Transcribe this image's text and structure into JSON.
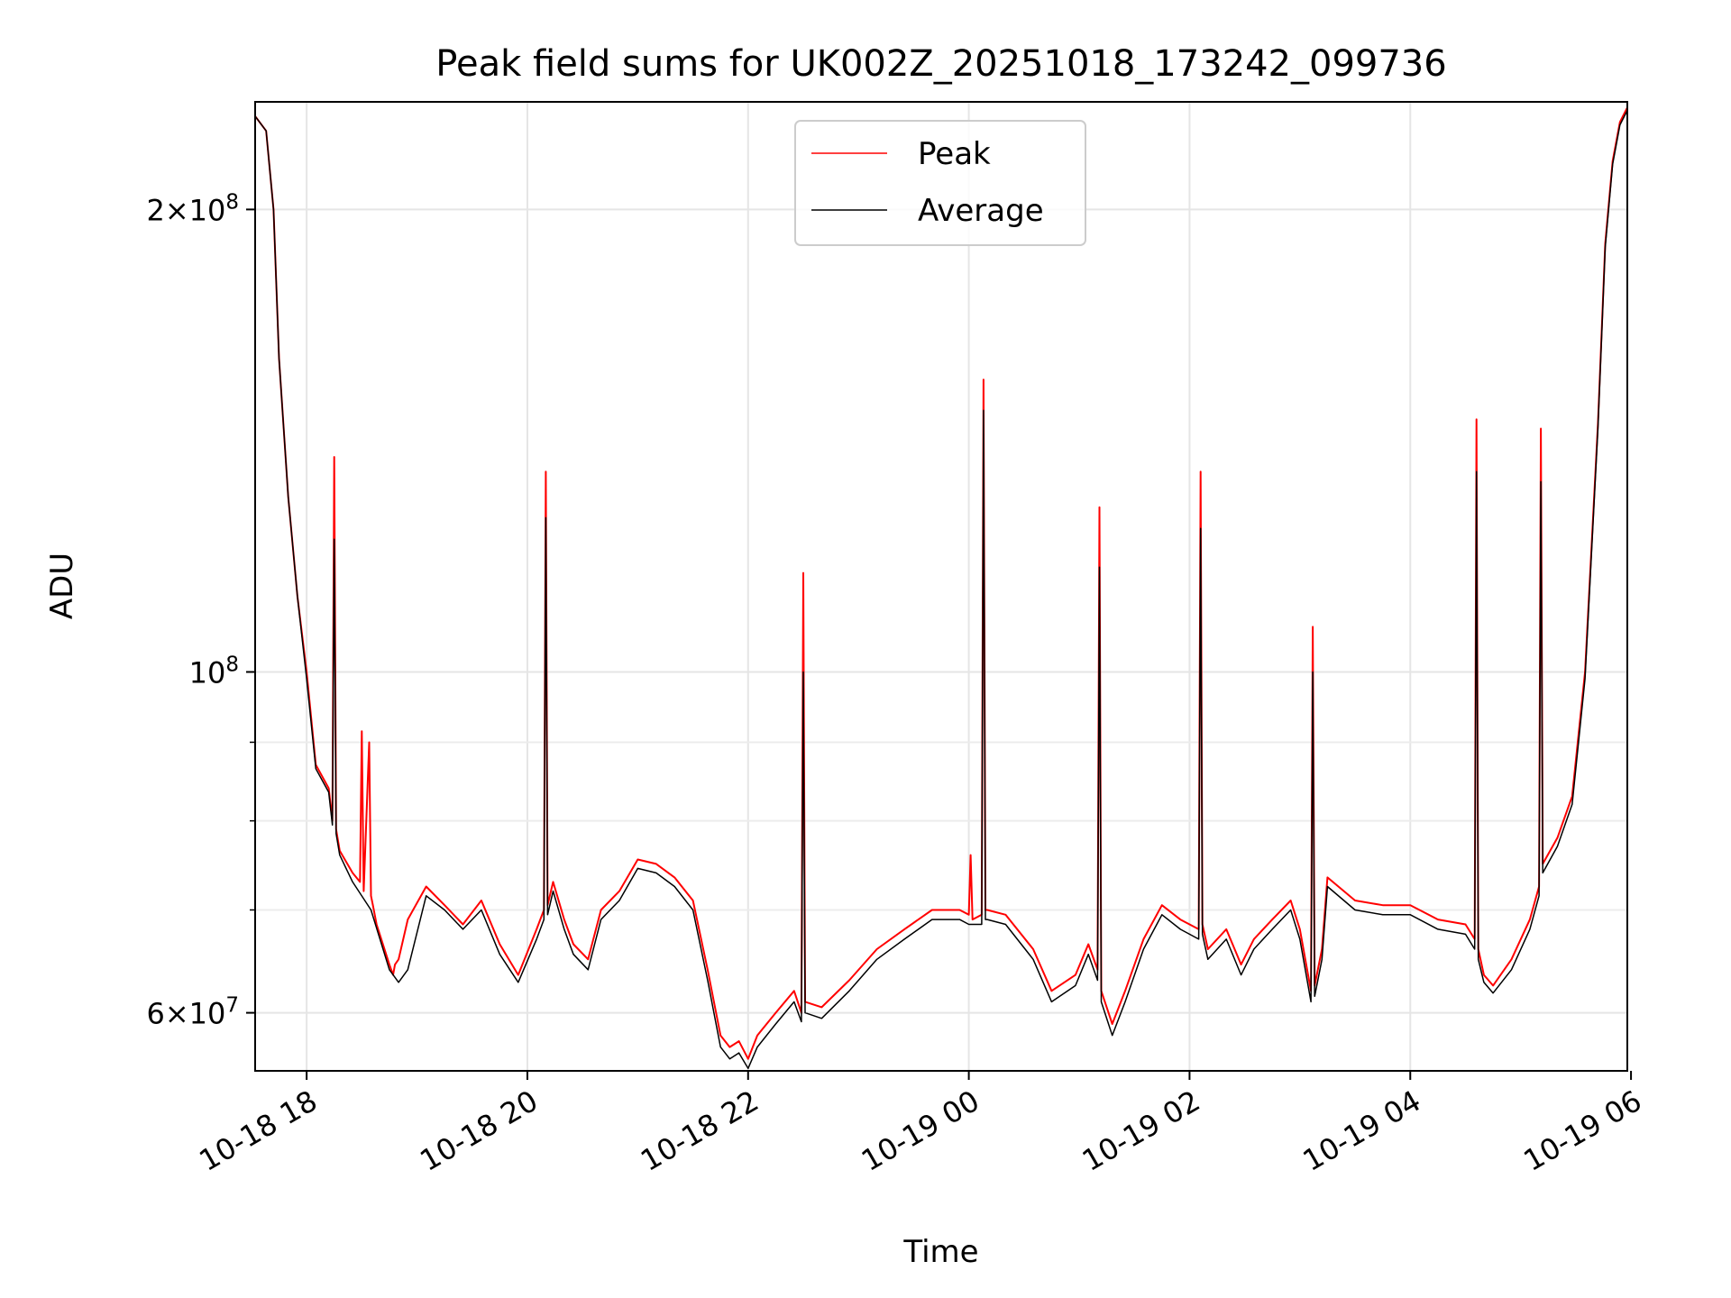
{
  "chart_data": {
    "type": "line",
    "title": "Peak field sums for UK002Z_20251018_173242_099736",
    "xlabel": "Time",
    "ylabel": "ADU",
    "y_scale": "log",
    "grid": true,
    "legend_position": "top-center",
    "xlim": [
      "2025-10-18T17:32",
      "2025-10-19T05:58"
    ],
    "ylim": [
      55000000,
      235000000
    ],
    "x_ticks": [
      {
        "value": "2025-10-18T18:00",
        "label": "10-18 18"
      },
      {
        "value": "2025-10-18T20:00",
        "label": "10-18 20"
      },
      {
        "value": "2025-10-18T22:00",
        "label": "10-18 22"
      },
      {
        "value": "2025-10-19T00:00",
        "label": "10-19 00"
      },
      {
        "value": "2025-10-19T02:00",
        "label": "10-19 02"
      },
      {
        "value": "2025-10-19T04:00",
        "label": "10-19 04"
      },
      {
        "value": "2025-10-19T06:00",
        "label": "10-19 06"
      }
    ],
    "y_ticks_major": [
      {
        "value": 60000000,
        "mantissa": "6",
        "exponent": "7"
      },
      {
        "value": 100000000,
        "mantissa": "",
        "exponent": "8"
      },
      {
        "value": 200000000,
        "mantissa": "2",
        "exponent": "8"
      }
    ],
    "y_ticks_minor": [
      70000000,
      80000000,
      90000000
    ],
    "series": [
      {
        "name": "Peak",
        "color": "#ff0000",
        "x": [
          "2025-10-18T17:32",
          "2025-10-18T17:38",
          "2025-10-18T17:42",
          "2025-10-18T17:45",
          "2025-10-18T17:50",
          "2025-10-18T17:55",
          "2025-10-18T18:00",
          "2025-10-18T18:05",
          "2025-10-18T18:12",
          "2025-10-18T18:14",
          "2025-10-18T18:15",
          "2025-10-18T18:16",
          "2025-10-18T18:18",
          "2025-10-18T18:25",
          "2025-10-18T18:29",
          "2025-10-18T18:30",
          "2025-10-18T18:31",
          "2025-10-18T18:34",
          "2025-10-18T18:35",
          "2025-10-18T18:36",
          "2025-10-18T18:38",
          "2025-10-18T18:45",
          "2025-10-18T18:47",
          "2025-10-18T18:48",
          "2025-10-18T18:50",
          "2025-10-18T18:55",
          "2025-10-18T19:05",
          "2025-10-18T19:15",
          "2025-10-18T19:25",
          "2025-10-18T19:35",
          "2025-10-18T19:45",
          "2025-10-18T19:55",
          "2025-10-18T20:05",
          "2025-10-18T20:09",
          "2025-10-18T20:10",
          "2025-10-18T20:11",
          "2025-10-18T20:14",
          "2025-10-18T20:20",
          "2025-10-18T20:25",
          "2025-10-18T20:33",
          "2025-10-18T20:40",
          "2025-10-18T20:50",
          "2025-10-18T21:00",
          "2025-10-18T21:10",
          "2025-10-18T21:20",
          "2025-10-18T21:30",
          "2025-10-18T21:38",
          "2025-10-18T21:45",
          "2025-10-18T21:50",
          "2025-10-18T21:55",
          "2025-10-18T22:00",
          "2025-10-18T22:05",
          "2025-10-18T22:15",
          "2025-10-18T22:25",
          "2025-10-18T22:29",
          "2025-10-18T22:30",
          "2025-10-18T22:31",
          "2025-10-18T22:40",
          "2025-10-18T22:55",
          "2025-10-18T23:10",
          "2025-10-18T23:25",
          "2025-10-18T23:40",
          "2025-10-18T23:55",
          "2025-10-19T00:00",
          "2025-10-19T00:01",
          "2025-10-19T00:02",
          "2025-10-19T00:07",
          "2025-10-19T00:08",
          "2025-10-19T00:09",
          "2025-10-19T00:10",
          "2025-10-19T00:20",
          "2025-10-19T00:35",
          "2025-10-19T00:45",
          "2025-10-19T00:58",
          "2025-10-19T01:05",
          "2025-10-19T01:10",
          "2025-10-19T01:11",
          "2025-10-19T01:12",
          "2025-10-19T01:18",
          "2025-10-19T01:25",
          "2025-10-19T01:35",
          "2025-10-19T01:45",
          "2025-10-19T01:55",
          "2025-10-19T02:05",
          "2025-10-19T02:06",
          "2025-10-19T02:07",
          "2025-10-19T02:10",
          "2025-10-19T02:20",
          "2025-10-19T02:28",
          "2025-10-19T02:35",
          "2025-10-19T02:45",
          "2025-10-19T02:55",
          "2025-10-19T03:00",
          "2025-10-19T03:06",
          "2025-10-19T03:07",
          "2025-10-19T03:08",
          "2025-10-19T03:12",
          "2025-10-19T03:15",
          "2025-10-19T03:30",
          "2025-10-19T03:45",
          "2025-10-19T04:00",
          "2025-10-19T04:15",
          "2025-10-19T04:30",
          "2025-10-19T04:35",
          "2025-10-19T04:36",
          "2025-10-19T04:37",
          "2025-10-19T04:40",
          "2025-10-19T04:45",
          "2025-10-19T04:55",
          "2025-10-19T05:05",
          "2025-10-19T05:10",
          "2025-10-19T05:11",
          "2025-10-19T05:12",
          "2025-10-19T05:20",
          "2025-10-19T05:28",
          "2025-10-19T05:35",
          "2025-10-19T05:42",
          "2025-10-19T05:46",
          "2025-10-19T05:50",
          "2025-10-19T05:54",
          "2025-10-19T05:58"
        ],
        "y": [
          230000000,
          225000000,
          200000000,
          160000000,
          130000000,
          112000000,
          100000000,
          87000000,
          84000000,
          80000000,
          138000000,
          79000000,
          76500000,
          74000000,
          73000000,
          91500000,
          72000000,
          90000000,
          71500000,
          70500000,
          68500000,
          64500000,
          63500000,
          64500000,
          65000000,
          69000000,
          72500000,
          70500000,
          68500000,
          71000000,
          66500000,
          63500000,
          68000000,
          70000000,
          135000000,
          70500000,
          73000000,
          69000000,
          66500000,
          65000000,
          70000000,
          72000000,
          75500000,
          75000000,
          73500000,
          71000000,
          64000000,
          58000000,
          57000000,
          57500000,
          56000000,
          58000000,
          60000000,
          62000000,
          60000000,
          116000000,
          61000000,
          60500000,
          63000000,
          66000000,
          68000000,
          70000000,
          70000000,
          69500000,
          76000000,
          69000000,
          69500000,
          155000000,
          70000000,
          70000000,
          69500000,
          66000000,
          62000000,
          63500000,
          66500000,
          64000000,
          128000000,
          62000000,
          59000000,
          62000000,
          67000000,
          70500000,
          69000000,
          68000000,
          135000000,
          68500000,
          66000000,
          68000000,
          64500000,
          67000000,
          69000000,
          71000000,
          68000000,
          62000000,
          107000000,
          62500000,
          66000000,
          73500000,
          71000000,
          70500000,
          70500000,
          69000000,
          68500000,
          67000000,
          146000000,
          66000000,
          63500000,
          62500000,
          65000000,
          69000000,
          72500000,
          144000000,
          75000000,
          78000000,
          83000000,
          100000000,
          145000000,
          190000000,
          215000000,
          228000000,
          233000000
        ]
      },
      {
        "name": "Average",
        "color": "#000000",
        "x": [
          "2025-10-18T17:32",
          "2025-10-18T17:38",
          "2025-10-18T17:42",
          "2025-10-18T17:45",
          "2025-10-18T17:50",
          "2025-10-18T17:55",
          "2025-10-18T18:00",
          "2025-10-18T18:05",
          "2025-10-18T18:12",
          "2025-10-18T18:14",
          "2025-10-18T18:15",
          "2025-10-18T18:16",
          "2025-10-18T18:18",
          "2025-10-18T18:25",
          "2025-10-18T18:35",
          "2025-10-18T18:45",
          "2025-10-18T18:50",
          "2025-10-18T18:55",
          "2025-10-18T19:05",
          "2025-10-18T19:15",
          "2025-10-18T19:25",
          "2025-10-18T19:35",
          "2025-10-18T19:45",
          "2025-10-18T19:55",
          "2025-10-18T20:05",
          "2025-10-18T20:09",
          "2025-10-18T20:10",
          "2025-10-18T20:11",
          "2025-10-18T20:14",
          "2025-10-18T20:20",
          "2025-10-18T20:25",
          "2025-10-18T20:33",
          "2025-10-18T20:40",
          "2025-10-18T20:50",
          "2025-10-18T21:00",
          "2025-10-18T21:10",
          "2025-10-18T21:20",
          "2025-10-18T21:30",
          "2025-10-18T21:38",
          "2025-10-18T21:45",
          "2025-10-18T21:50",
          "2025-10-18T21:55",
          "2025-10-18T22:00",
          "2025-10-18T22:05",
          "2025-10-18T22:15",
          "2025-10-18T22:25",
          "2025-10-18T22:29",
          "2025-10-18T22:30",
          "2025-10-18T22:31",
          "2025-10-18T22:40",
          "2025-10-18T22:55",
          "2025-10-18T23:10",
          "2025-10-18T23:25",
          "2025-10-18T23:40",
          "2025-10-18T23:55",
          "2025-10-19T00:00",
          "2025-10-19T00:07",
          "2025-10-19T00:08",
          "2025-10-19T00:09",
          "2025-10-19T00:10",
          "2025-10-19T00:20",
          "2025-10-19T00:35",
          "2025-10-19T00:45",
          "2025-10-19T00:58",
          "2025-10-19T01:05",
          "2025-10-19T01:10",
          "2025-10-19T01:11",
          "2025-10-19T01:12",
          "2025-10-19T01:18",
          "2025-10-19T01:25",
          "2025-10-19T01:35",
          "2025-10-19T01:45",
          "2025-10-19T01:55",
          "2025-10-19T02:05",
          "2025-10-19T02:06",
          "2025-10-19T02:07",
          "2025-10-19T02:10",
          "2025-10-19T02:20",
          "2025-10-19T02:28",
          "2025-10-19T02:35",
          "2025-10-19T02:45",
          "2025-10-19T02:55",
          "2025-10-19T03:00",
          "2025-10-19T03:06",
          "2025-10-19T03:07",
          "2025-10-19T03:08",
          "2025-10-19T03:12",
          "2025-10-19T03:15",
          "2025-10-19T03:30",
          "2025-10-19T03:45",
          "2025-10-19T04:00",
          "2025-10-19T04:15",
          "2025-10-19T04:30",
          "2025-10-19T04:35",
          "2025-10-19T04:36",
          "2025-10-19T04:37",
          "2025-10-19T04:40",
          "2025-10-19T04:45",
          "2025-10-19T04:55",
          "2025-10-19T05:05",
          "2025-10-19T05:10",
          "2025-10-19T05:11",
          "2025-10-19T05:12",
          "2025-10-19T05:20",
          "2025-10-19T05:28",
          "2025-10-19T05:35",
          "2025-10-19T05:42",
          "2025-10-19T05:46",
          "2025-10-19T05:50",
          "2025-10-19T05:54",
          "2025-10-19T05:58"
        ],
        "y": [
          230000000,
          225000000,
          200000000,
          160000000,
          130000000,
          112000000,
          99000000,
          86500000,
          83500000,
          79500000,
          122000000,
          78500000,
          76000000,
          73000000,
          70000000,
          64000000,
          62800000,
          64000000,
          71500000,
          70000000,
          68000000,
          70000000,
          65500000,
          62800000,
          67000000,
          69000000,
          126000000,
          69500000,
          72000000,
          68000000,
          65500000,
          64000000,
          69000000,
          71000000,
          74500000,
          74000000,
          72500000,
          70000000,
          63000000,
          57000000,
          56000000,
          56500000,
          55200000,
          57000000,
          59000000,
          61000000,
          59200000,
          100000000,
          60000000,
          59500000,
          62000000,
          65000000,
          67000000,
          69000000,
          69000000,
          68500000,
          68500000,
          148000000,
          69000000,
          69000000,
          68500000,
          65000000,
          61000000,
          62500000,
          65500000,
          63000000,
          117000000,
          61000000,
          58000000,
          61000000,
          66000000,
          69500000,
          68000000,
          67000000,
          124000000,
          67500000,
          65000000,
          67000000,
          63500000,
          66000000,
          68000000,
          70000000,
          67000000,
          61000000,
          100000000,
          61500000,
          65000000,
          72500000,
          70000000,
          69500000,
          69500000,
          68000000,
          67500000,
          66000000,
          135000000,
          65000000,
          62800000,
          61800000,
          64000000,
          68000000,
          71500000,
          133000000,
          74000000,
          77000000,
          82000000,
          99000000,
          144000000,
          189000000,
          214000000,
          227000000,
          232000000
        ]
      }
    ]
  }
}
